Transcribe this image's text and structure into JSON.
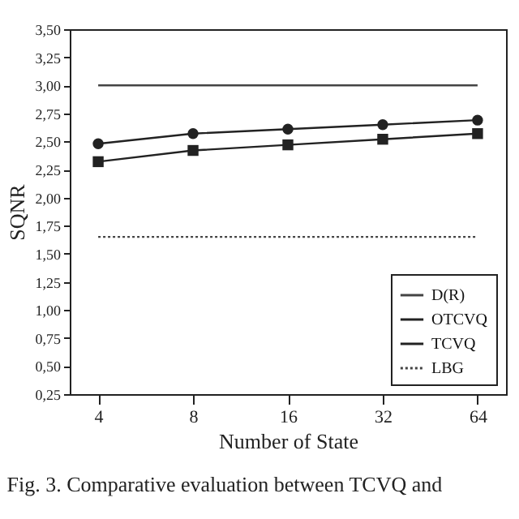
{
  "chart_data": {
    "type": "line",
    "xlabel": "Number of State",
    "ylabel": "SQNR",
    "categories": [
      "4",
      "8",
      "16",
      "32",
      "64"
    ],
    "series": [
      {
        "name": "D(R)",
        "color": "#444444",
        "values": [
          3.0,
          3.0,
          3.0,
          3.0,
          3.0
        ],
        "marker": "none",
        "line_style": "solid"
      },
      {
        "name": "OTCVQ",
        "color": "#222222",
        "values": [
          2.48,
          2.57,
          2.61,
          2.65,
          2.69
        ],
        "marker": "circle",
        "line_style": "solid"
      },
      {
        "name": "TCVQ",
        "color": "#222222",
        "values": [
          2.32,
          2.42,
          2.47,
          2.52,
          2.57
        ],
        "marker": "square",
        "line_style": "solid"
      },
      {
        "name": "LBG",
        "color": "#444444",
        "values": [
          1.65,
          1.65,
          1.65,
          1.65,
          1.65
        ],
        "marker": "none",
        "line_style": "dotted"
      }
    ],
    "ylim": [
      0.25,
      3.5
    ],
    "yticks": [
      {
        "value": 0.25,
        "label": "0,25"
      },
      {
        "value": 0.5,
        "label": "0,50"
      },
      {
        "value": 0.75,
        "label": "0,75"
      },
      {
        "value": 1.0,
        "label": "1,00"
      },
      {
        "value": 1.25,
        "label": "1,25"
      },
      {
        "value": 1.5,
        "label": "1,50"
      },
      {
        "value": 1.75,
        "label": "1,75"
      },
      {
        "value": 2.0,
        "label": "2,00"
      },
      {
        "value": 2.25,
        "label": "2,25"
      },
      {
        "value": 2.5,
        "label": "2,50"
      },
      {
        "value": 2.75,
        "label": "2,75"
      },
      {
        "value": 3.0,
        "label": "3,00"
      },
      {
        "value": 3.25,
        "label": "3,25"
      },
      {
        "value": 3.5,
        "label": "3,50"
      }
    ],
    "grid": false,
    "legend": "bottom right",
    "annotations": [
      "Fig. 3. Comparative evaluation between TCVQ and"
    ]
  }
}
